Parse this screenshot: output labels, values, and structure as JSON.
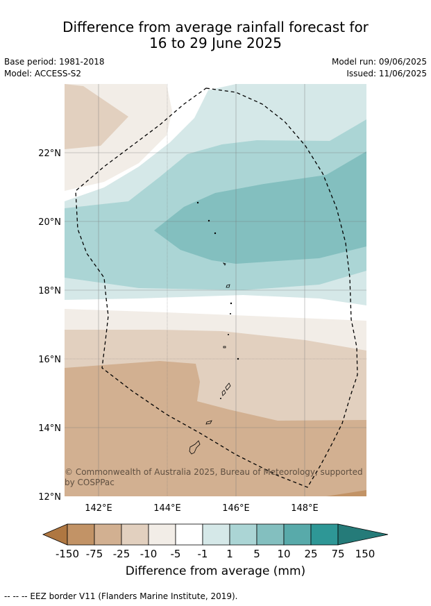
{
  "title_line1": "Difference from average rainfall forecast for",
  "title_line2": "16 to 29 June 2025",
  "meta": {
    "base_period": "Base period: 1981-2018",
    "model": "Model: ACCESS-S2",
    "model_run": "Model run: 09/06/2025",
    "issued": "Issued: 11/06/2025"
  },
  "map": {
    "lat_labels": [
      "22°N",
      "20°N",
      "18°N",
      "16°N",
      "14°N",
      "12°N"
    ],
    "lon_labels": [
      "142°E",
      "144°E",
      "146°E",
      "148°E"
    ],
    "copyright_line1": "© Commonwealth of Australia 2025, Bureau of Meteorology, supported",
    "copyright_line2": "by COSPPac"
  },
  "colorbar": {
    "ticks": [
      "-150",
      "-75",
      "-25",
      "-10",
      "-5",
      "-1",
      "1",
      "5",
      "10",
      "25",
      "75",
      "150"
    ],
    "colors": [
      "#af7741",
      "#c29366",
      "#d2b091",
      "#e2d0bf",
      "#f2ede7",
      "#ffffff",
      "#d5e8e8",
      "#abd5d5",
      "#83bfbf",
      "#58aaaa",
      "#2e9796",
      "#257b79"
    ],
    "title": "Difference from average (mm)"
  },
  "legend": {
    "eez_text": "--  --  -- EEZ border V11 (Flanders Marine Institute, 2019)."
  }
}
